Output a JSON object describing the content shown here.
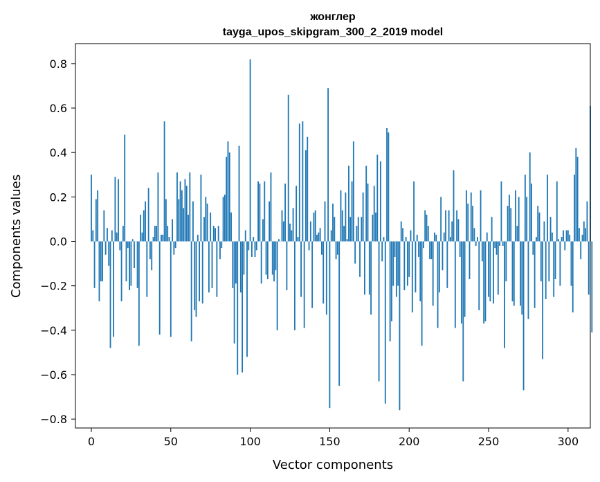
{
  "chart_data": {
    "type": "bar",
    "title": "жонглер",
    "subtitle": "tayga_upos_skipgram_300_2_2019 model",
    "xlabel": "Vector components",
    "ylabel": "Components values",
    "xlim": [
      -10,
      314
    ],
    "ylim": [
      -0.84,
      0.89
    ],
    "xticks": [
      0,
      50,
      100,
      150,
      200,
      250,
      300
    ],
    "xtick_labels": [
      "0",
      "50",
      "100",
      "150",
      "200",
      "250",
      "300"
    ],
    "yticks": [
      -0.8,
      -0.6,
      -0.4,
      -0.2,
      0.0,
      0.2,
      0.4,
      0.6,
      0.8
    ],
    "ytick_labels": [
      "−0.8",
      "−0.6",
      "−0.4",
      "−0.2",
      "0.0",
      "0.2",
      "0.4",
      "0.6",
      "0.8"
    ],
    "grid": false,
    "bar_color": "#1f77b4",
    "x_start": 0,
    "values": [
      0.3,
      0.05,
      -0.21,
      0.19,
      0.23,
      -0.27,
      -0.18,
      -0.18,
      0.14,
      -0.06,
      0.06,
      -0.11,
      -0.48,
      0.05,
      -0.43,
      0.29,
      0.04,
      0.28,
      -0.04,
      -0.27,
      0.07,
      0.48,
      -0.18,
      -0.03,
      -0.22,
      -0.2,
      0.01,
      -0.12,
      0.0,
      -0.21,
      -0.47,
      0.12,
      0.04,
      0.14,
      0.18,
      -0.25,
      0.24,
      -0.08,
      -0.13,
      0.02,
      0.07,
      0.07,
      0.31,
      -0.42,
      0.03,
      0.03,
      0.54,
      0.19,
      0.07,
      0.02,
      -0.43,
      0.1,
      -0.06,
      -0.03,
      0.31,
      0.19,
      0.27,
      0.23,
      0.15,
      0.28,
      0.25,
      0.12,
      0.31,
      -0.45,
      0.18,
      -0.31,
      -0.34,
      0.03,
      -0.27,
      0.3,
      -0.28,
      0.11,
      0.2,
      0.17,
      -0.23,
      0.13,
      -0.21,
      0.07,
      0.06,
      -0.25,
      0.07,
      -0.08,
      -0.03,
      0.2,
      0.21,
      0.38,
      0.45,
      0.4,
      0.13,
      -0.21,
      -0.46,
      -0.19,
      -0.6,
      0.43,
      -0.23,
      -0.59,
      -0.15,
      0.05,
      -0.52,
      -0.04,
      0.82,
      -0.07,
      0.02,
      -0.07,
      -0.04,
      0.27,
      0.26,
      -0.19,
      0.1,
      0.27,
      -0.15,
      -0.17,
      0.18,
      0.31,
      -0.15,
      -0.18,
      -0.13,
      -0.4,
      0.01,
      0.0,
      0.14,
      0.09,
      0.26,
      -0.22,
      0.66,
      0.08,
      0.05,
      0.15,
      -0.4,
      0.25,
      0.02,
      0.53,
      -0.25,
      0.54,
      -0.39,
      0.41,
      0.47,
      -0.04,
      0.09,
      -0.3,
      0.13,
      0.14,
      0.03,
      0.04,
      0.06,
      -0.06,
      -0.28,
      0.18,
      -0.33,
      0.69,
      -0.75,
      0.05,
      0.17,
      0.11,
      -0.08,
      -0.06,
      -0.65,
      0.23,
      0.14,
      0.07,
      0.22,
      0.01,
      0.34,
      0.11,
      0.27,
      0.45,
      -0.1,
      0.07,
      0.11,
      -0.16,
      0.11,
      0.22,
      -0.24,
      0.34,
      0.26,
      -0.24,
      -0.33,
      0.12,
      0.25,
      0.13,
      0.39,
      -0.63,
      0.36,
      -0.09,
      0.02,
      -0.73,
      0.51,
      0.49,
      -0.45,
      -0.36,
      -0.2,
      -0.07,
      -0.25,
      -0.2,
      -0.76,
      0.09,
      0.06,
      -0.22,
      0.02,
      -0.2,
      -0.16,
      0.05,
      -0.32,
      0.27,
      -0.23,
      0.03,
      -0.07,
      -0.27,
      -0.47,
      -0.03,
      0.14,
      0.12,
      0.07,
      -0.08,
      -0.08,
      -0.29,
      0.04,
      0.03,
      -0.39,
      -0.23,
      0.2,
      -0.13,
      0.04,
      0.14,
      -0.21,
      0.14,
      0.02,
      0.09,
      0.32,
      -0.39,
      0.14,
      0.1,
      -0.07,
      -0.37,
      -0.63,
      -0.34,
      0.23,
      0.17,
      -0.17,
      0.22,
      0.16,
      0.06,
      -0.02,
      0.02,
      -0.31,
      0.23,
      -0.09,
      -0.37,
      -0.36,
      0.04,
      -0.25,
      -0.27,
      0.11,
      -0.28,
      -0.03,
      -0.06,
      -0.24,
      -0.02,
      0.27,
      -0.02,
      -0.48,
      -0.18,
      0.16,
      0.21,
      0.15,
      -0.27,
      -0.29,
      0.23,
      0.07,
      0.2,
      -0.29,
      -0.33,
      -0.67,
      0.3,
      0.2,
      -0.35,
      0.4,
      0.26,
      -0.06,
      -0.3,
      0.02,
      0.16,
      0.13,
      -0.18,
      -0.53,
      0.09,
      -0.26,
      0.3,
      -0.18,
      0.11,
      0.04,
      -0.25,
      -0.17,
      0.27,
      0.01,
      -0.2,
      0.02,
      0.05,
      -0.04,
      0.05,
      0.05,
      0.03,
      -0.2,
      -0.32,
      0.3,
      0.42,
      0.38,
      0.06,
      -0.08,
      0.03,
      0.09,
      0.06,
      0.18,
      -0.24,
      0.61,
      -0.41
    ]
  }
}
